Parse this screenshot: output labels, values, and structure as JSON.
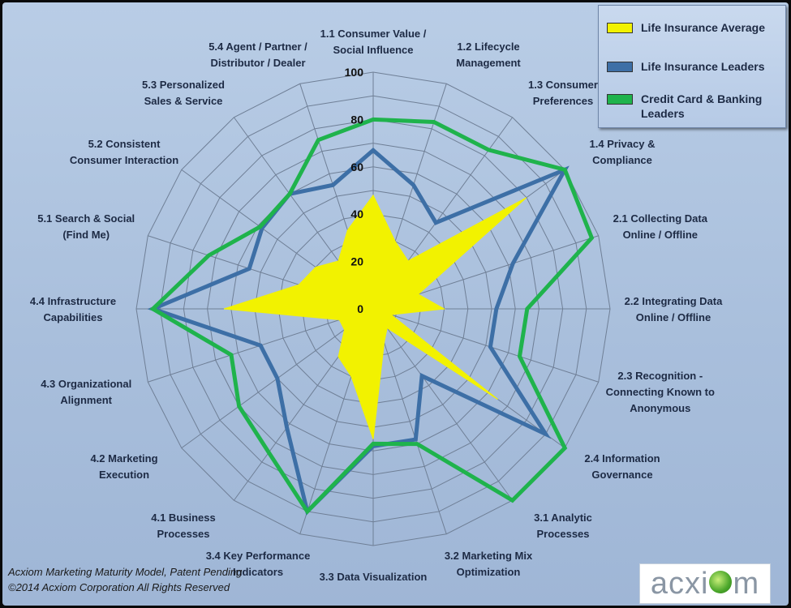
{
  "chart_data": {
    "type": "radar",
    "title": "",
    "categories": [
      "1.1 Consumer Value / Social Influence",
      "1.2 Lifecycle Management",
      "1.3 Consumer Preferences",
      "1.4 Privacy & Compliance",
      "2.1 Collecting Data Online / Offline",
      "2.2 Integrating Data Online / Offline",
      "2.3 Recognition - Connecting Known to Anonymous",
      "2.4 Information Governance",
      "3.1 Analytic Processes",
      "3.2 Marketing Mix Optimization",
      "3.3 Data Visualization",
      "3.4 Key Performance Indicators",
      "4.1 Business Processes",
      "4.2 Marketing Execution",
      "4.3 Organizational Alignment",
      "4.4 Infrastructure Capabilities",
      "5.1 Search & Social (Find Me)",
      "5.2 Consistent Consumer Interaction",
      "5.3 Personalized Sales & Service",
      "5.4 Agent / Partner / Distributor / Dealer"
    ],
    "label_lines": [
      [
        "1.1 Consumer Value /",
        "Social Influence"
      ],
      [
        "1.2 Lifecycle",
        "Management"
      ],
      [
        "1.3 Consumer",
        "Preferences"
      ],
      [
        "1.4 Privacy &",
        "Compliance"
      ],
      [
        "2.1 Collecting Data",
        "Online / Offline"
      ],
      [
        "2.2 Integrating Data",
        "Online / Offline"
      ],
      [
        "2.3 Recognition -",
        "Connecting Known to",
        "Anonymous"
      ],
      [
        "2.4 Information",
        "Governance"
      ],
      [
        "3.1 Analytic",
        "Processes"
      ],
      [
        "3.2 Marketing Mix",
        "Optimization"
      ],
      [
        "3.3 Data Visualization"
      ],
      [
        "3.4 Key Performance",
        "Indicators"
      ],
      [
        "4.1 Business",
        "Processes"
      ],
      [
        "4.2 Marketing",
        "Execution"
      ],
      [
        "4.3 Organizational",
        "Alignment"
      ],
      [
        "4.4 Infrastructure",
        "Capabilities"
      ],
      [
        "5.1 Search & Social",
        "(Find Me)"
      ],
      [
        "5.2 Consistent",
        "Consumer Interaction"
      ],
      [
        "5.3 Personalized",
        "Sales & Service"
      ],
      [
        "5.4 Agent / Partner /",
        "Distributor / Dealer"
      ]
    ],
    "ticks": [
      "0",
      "20",
      "40",
      "60",
      "80",
      "100"
    ],
    "rlim": [
      0,
      100
    ],
    "series": [
      {
        "name": "Life Insurance Average",
        "values": [
          48,
          30,
          25,
          80,
          20,
          30,
          8,
          65,
          10,
          15,
          55,
          30,
          25,
          15,
          15,
          63,
          33,
          30,
          25,
          35
        ],
        "color": "#f2f200",
        "style": "filled"
      },
      {
        "name": "Life Insurance Leaders",
        "values": [
          67,
          55,
          45,
          100,
          62,
          52,
          52,
          90,
          35,
          58,
          58,
          90,
          62,
          50,
          50,
          93,
          55,
          58,
          60,
          55
        ],
        "color": "#3d6fa6",
        "style": "line"
      },
      {
        "name": "Credit Card & Banking Leaders",
        "values": [
          80,
          83,
          83,
          100,
          97,
          65,
          65,
          100,
          100,
          60,
          57,
          90,
          75,
          70,
          63,
          93,
          73,
          59,
          60,
          75
        ],
        "color": "#1fb34c",
        "style": "line"
      }
    ],
    "legend_position": "top-right",
    "grid": true
  },
  "footer": {
    "line1": "Acxiom Marketing Maturity Model, Patent Pending",
    "line2": "©2014 Acxiom Corporation All Rights Reserved"
  },
  "logo": {
    "pre": "acxi",
    "post": "m"
  }
}
